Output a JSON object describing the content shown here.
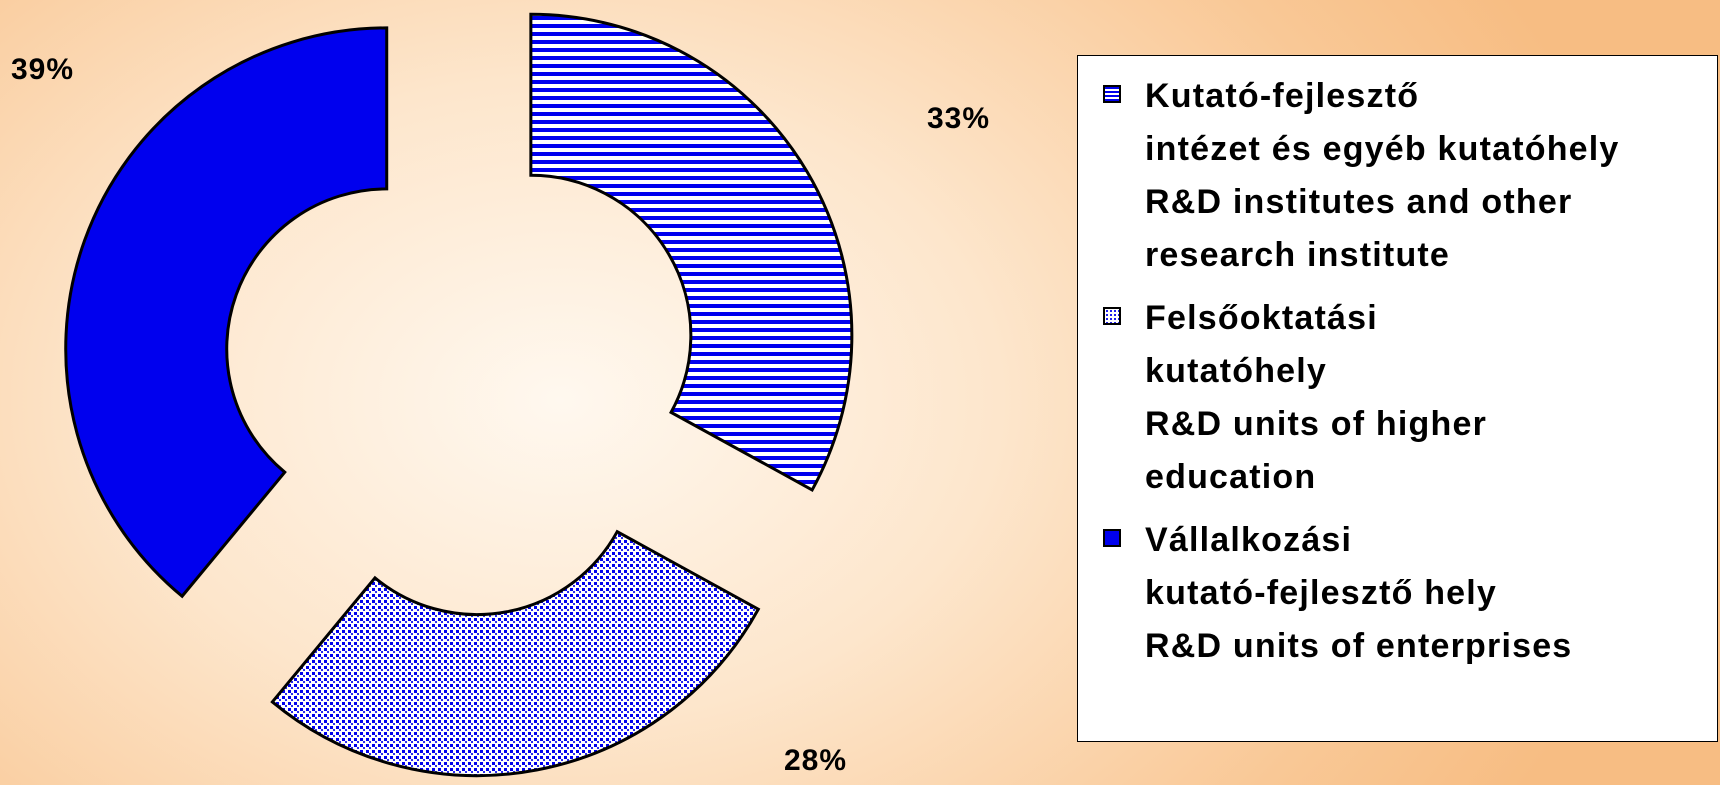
{
  "chart_data": {
    "type": "donut",
    "categories": [
      "Kutató-fejlesztő\nintézet és egyéb kutatóhely\nR&D institutes and other\nresearch institute",
      "Felsőoktatási\nkutatóhely\nR&D units of higher\neducation",
      "Vállalkozási\nkutató-fejlesztő hely\nR&D units of enterprises"
    ],
    "values": [
      33,
      28,
      39
    ],
    "value_labels": [
      "33%",
      "28%",
      "39%"
    ],
    "colors": [
      "#0000ee",
      "#0000ee",
      "#0000ee"
    ],
    "patterns": [
      "horizontal-stripes",
      "dots",
      "solid"
    ],
    "exploded": true,
    "legend": "right"
  }
}
